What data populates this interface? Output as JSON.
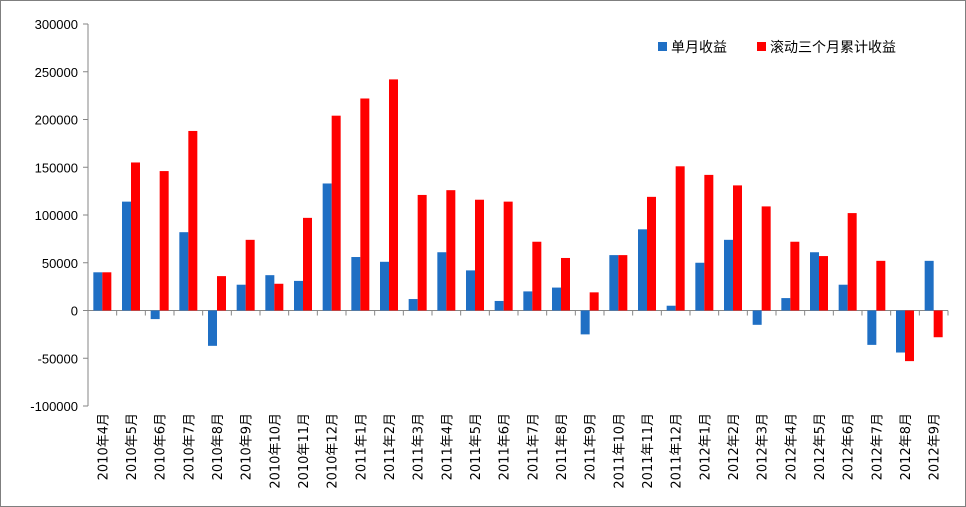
{
  "chart_data": {
    "type": "bar",
    "categories": [
      "2010年4月",
      "2010年5月",
      "2010年6月",
      "2010年7月",
      "2010年8月",
      "2010年9月",
      "2010年10月",
      "2010年11月",
      "2010年12月",
      "2011年1月",
      "2011年2月",
      "2011年3月",
      "2011年4月",
      "2011年5月",
      "2011年6月",
      "2011年7月",
      "2011年8月",
      "2011年9月",
      "2011年10月",
      "2011年11月",
      "2011年12月",
      "2012年1月",
      "2012年2月",
      "2012年3月",
      "2012年4月",
      "2012年5月",
      "2012年6月",
      "2012年7月",
      "2012年8月",
      "2012年9月"
    ],
    "series": [
      {
        "name": "单月收益",
        "color": "#1f6fc4",
        "values": [
          40000,
          114000,
          -9000,
          82000,
          -37000,
          27000,
          37000,
          31000,
          133000,
          56000,
          51000,
          12000,
          61000,
          42000,
          10000,
          20000,
          24000,
          -25000,
          58000,
          85000,
          5000,
          50000,
          74000,
          -15000,
          13000,
          61000,
          27000,
          -36000,
          -44000,
          52000
        ]
      },
      {
        "name": "滚动三个月累计收益",
        "color": "#ff0000",
        "values": [
          40000,
          155000,
          146000,
          188000,
          36000,
          74000,
          28000,
          97000,
          204000,
          222000,
          242000,
          121000,
          126000,
          116000,
          114000,
          72000,
          55000,
          19000,
          58000,
          119000,
          151000,
          142000,
          131000,
          109000,
          72000,
          57000,
          102000,
          52000,
          -53000,
          -28000
        ]
      }
    ],
    "ylim": [
      -100000,
      300000
    ],
    "yticks": [
      "-100000",
      "-50000",
      "0",
      "50000",
      "100000",
      "150000",
      "200000",
      "250000",
      "300000"
    ],
    "title": "",
    "xlabel": "",
    "ylabel": "",
    "legend_position": "top-right",
    "grid": false
  }
}
